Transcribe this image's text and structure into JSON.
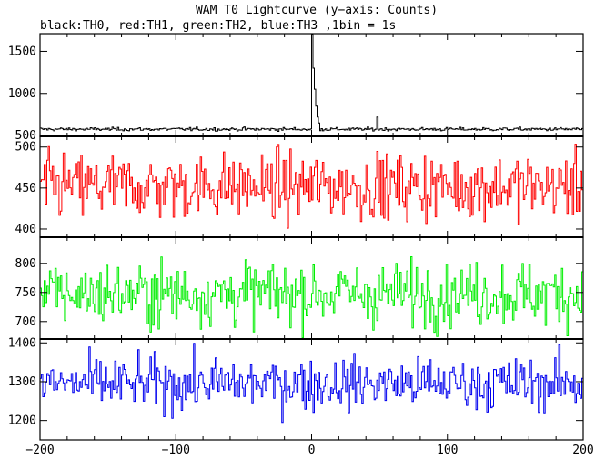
{
  "chart_data": {
    "type": "line",
    "title": "WAM T0 Lightcurve (y−axis: Counts)",
    "subtitle": "black:TH0, red:TH1, green:TH2, blue:TH3 ,1bin = 1s",
    "xlabel": "",
    "ylabel": "",
    "x_range": [
      -200,
      200
    ],
    "x_ticks": [
      -200,
      -100,
      0,
      100,
      200
    ],
    "grid": false,
    "panels": [
      {
        "series_name": "TH0",
        "color": "#000000",
        "ylim": [
          490,
          1710
        ],
        "y_ticks": [
          500,
          1000,
          1500
        ],
        "baseline": 575,
        "noise": 10,
        "features": [
          {
            "x": 0,
            "value": 1700
          },
          {
            "x": 1,
            "value": 1300
          },
          {
            "x": 2,
            "value": 1050
          },
          {
            "x": 3,
            "value": 850
          },
          {
            "x": 4,
            "value": 720
          },
          {
            "x": 5,
            "value": 650
          },
          {
            "x": 48,
            "value": 720
          }
        ]
      },
      {
        "series_name": "TH1",
        "color": "#ff0000",
        "ylim": [
          390,
          513
        ],
        "y_ticks": [
          400,
          450,
          500
        ],
        "baseline": 452,
        "noise": 20
      },
      {
        "series_name": "TH2",
        "color": "#00ee00",
        "ylim": [
          670,
          845
        ],
        "y_ticks": [
          700,
          750,
          800
        ],
        "baseline": 748,
        "noise": 27
      },
      {
        "series_name": "TH3",
        "color": "#0000ee",
        "ylim": [
          1150,
          1410
        ],
        "y_ticks": [
          1200,
          1300,
          1400
        ],
        "baseline": 1295,
        "noise": 33
      }
    ]
  }
}
